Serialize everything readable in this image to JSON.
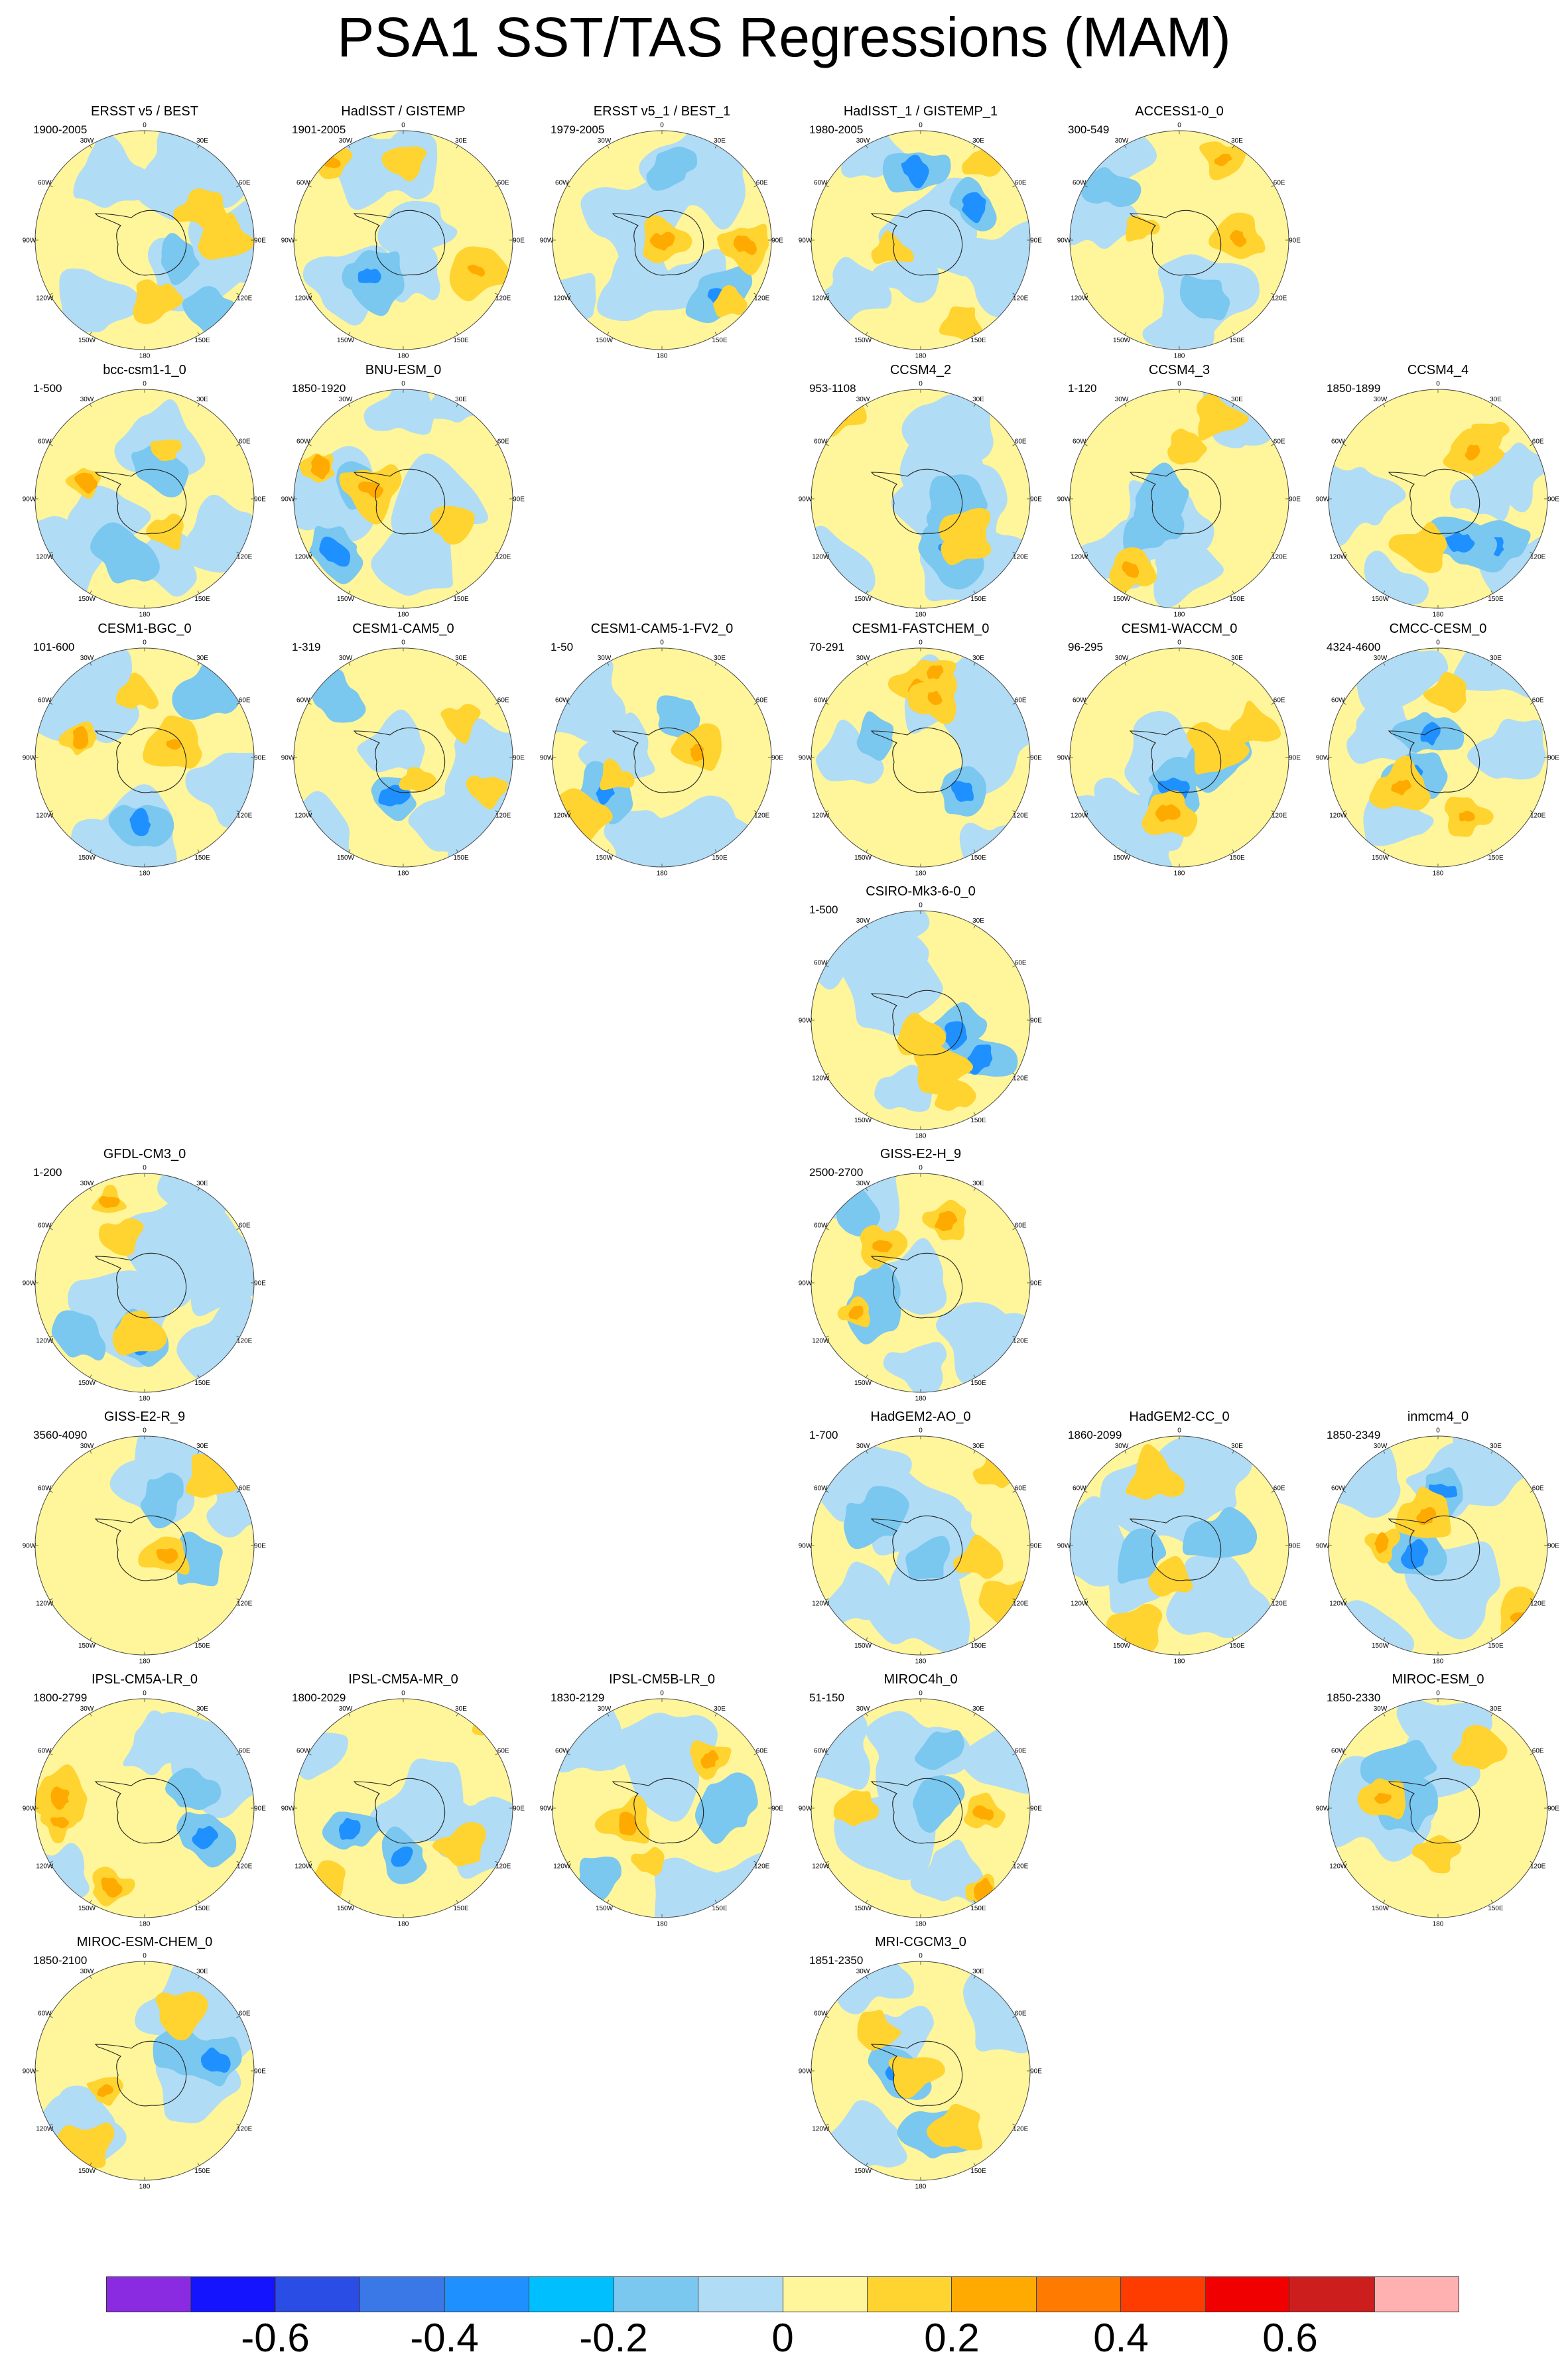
{
  "chart_data": {
    "type": "heatmap",
    "title": "PSA1 SST/TAS Regressions (MAM)",
    "projection": "south polar stereographic",
    "longitude_labels": [
      "0",
      "30E",
      "60E",
      "90E",
      "120E",
      "150E",
      "180",
      "150W",
      "120W",
      "90W",
      "60W",
      "30W"
    ],
    "colorbar": {
      "colors": [
        "#8a2be2",
        "#1414ff",
        "#2a4de6",
        "#3a78e8",
        "#1e90ff",
        "#00bfff",
        "#7ac7f0",
        "#b0dcf5",
        "#fff59a",
        "#ffd330",
        "#ffaa00",
        "#ff7a00",
        "#ff3c00",
        "#f00000",
        "#cd1e1e",
        "#ffb0b0"
      ],
      "tick_labels": [
        "-0.6",
        "-0.4",
        "-0.2",
        "0",
        "0.2",
        "0.4",
        "0.6"
      ],
      "tick_values": [
        -0.6,
        -0.4,
        -0.2,
        0,
        0.2,
        0.4,
        0.6
      ]
    },
    "panels": [
      {
        "row": 0,
        "col": 0,
        "name": "ERSST v5 / BEST",
        "period": "1900-2005"
      },
      {
        "row": 0,
        "col": 1,
        "name": "HadISST / GISTEMP",
        "period": "1901-2005"
      },
      {
        "row": 0,
        "col": 2,
        "name": "ERSST v5_1 / BEST_1",
        "period": "1979-2005"
      },
      {
        "row": 0,
        "col": 3,
        "name": "HadISST_1 / GISTEMP_1",
        "period": "1980-2005"
      },
      {
        "row": 0,
        "col": 4,
        "name": "ACCESS1-0_0",
        "period": "300-549"
      },
      {
        "row": 1,
        "col": 0,
        "name": "bcc-csm1-1_0",
        "period": "1-500"
      },
      {
        "row": 1,
        "col": 1,
        "name": "BNU-ESM_0",
        "period": "1850-1920"
      },
      {
        "row": 1,
        "col": 3,
        "name": "CCSM4_2",
        "period": "953-1108"
      },
      {
        "row": 1,
        "col": 4,
        "name": "CCSM4_3",
        "period": "1-120"
      },
      {
        "row": 1,
        "col": 5,
        "name": "CCSM4_4",
        "period": "1850-1899"
      },
      {
        "row": 2,
        "col": 0,
        "name": "CESM1-BGC_0",
        "period": "101-600"
      },
      {
        "row": 2,
        "col": 1,
        "name": "CESM1-CAM5_0",
        "period": "1-319"
      },
      {
        "row": 2,
        "col": 2,
        "name": "CESM1-CAM5-1-FV2_0",
        "period": "1-50"
      },
      {
        "row": 2,
        "col": 3,
        "name": "CESM1-FASTCHEM_0",
        "period": "70-291"
      },
      {
        "row": 2,
        "col": 4,
        "name": "CESM1-WACCM_0",
        "period": "96-295"
      },
      {
        "row": 2,
        "col": 5,
        "name": "CMCC-CESM_0",
        "period": "4324-4600"
      },
      {
        "row": 3,
        "col": 3,
        "name": "CSIRO-Mk3-6-0_0",
        "period": "1-500"
      },
      {
        "row": 4,
        "col": 0,
        "name": "GFDL-CM3_0",
        "period": "1-200"
      },
      {
        "row": 4,
        "col": 3,
        "name": "GISS-E2-H_9",
        "period": "2500-2700"
      },
      {
        "row": 5,
        "col": 0,
        "name": "GISS-E2-R_9",
        "period": "3560-4090"
      },
      {
        "row": 5,
        "col": 3,
        "name": "HadGEM2-AO_0",
        "period": "1-700"
      },
      {
        "row": 5,
        "col": 4,
        "name": "HadGEM2-CC_0",
        "period": "1860-2099"
      },
      {
        "row": 5,
        "col": 5,
        "name": "inmcm4_0",
        "period": "1850-2349"
      },
      {
        "row": 6,
        "col": 0,
        "name": "IPSL-CM5A-LR_0",
        "period": "1800-2799"
      },
      {
        "row": 6,
        "col": 1,
        "name": "IPSL-CM5A-MR_0",
        "period": "1800-2029"
      },
      {
        "row": 6,
        "col": 2,
        "name": "IPSL-CM5B-LR_0",
        "period": "1830-2129"
      },
      {
        "row": 6,
        "col": 3,
        "name": "MIROC4h_0",
        "period": "51-150"
      },
      {
        "row": 6,
        "col": 5,
        "name": "MIROC-ESM_0",
        "period": "1850-2330"
      },
      {
        "row": 7,
        "col": 0,
        "name": "MIROC-ESM-CHEM_0",
        "period": "1850-2100"
      },
      {
        "row": 7,
        "col": 3,
        "name": "MRI-CGCM3_0",
        "period": "1851-2350"
      }
    ]
  }
}
